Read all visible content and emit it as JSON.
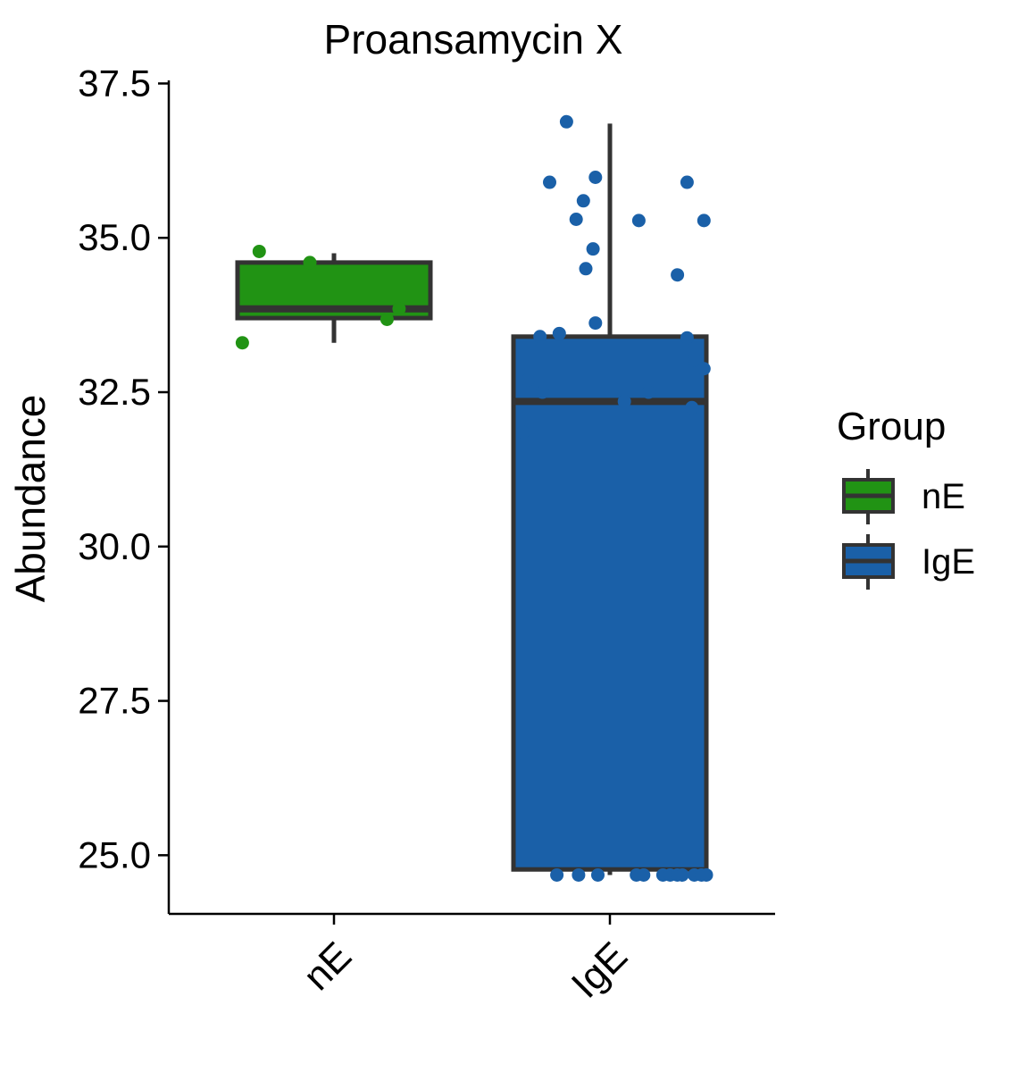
{
  "chart_data": {
    "type": "box",
    "title": "Proansamycin X",
    "xlabel": "",
    "ylabel": "Abundance",
    "categories": [
      "nE",
      "IgE"
    ],
    "ylim": [
      24.05,
      37.55
    ],
    "yticks": [
      25.0,
      27.5,
      30.0,
      32.5,
      35.0,
      37.5
    ],
    "ytick_labels": [
      "25.0",
      "27.5",
      "30.0",
      "32.5",
      "35.0",
      "37.5"
    ],
    "grid": false,
    "legend": {
      "title": "Group",
      "placement": "right",
      "entries": [
        {
          "label": "nE",
          "color": "#219314"
        },
        {
          "label": "IgE",
          "color": "#1a60a8"
        }
      ]
    },
    "series": [
      {
        "category": "nE",
        "color": "#219314",
        "box": {
          "min": 33.3,
          "q1": 33.7,
          "median": 33.85,
          "q3": 34.6,
          "max": 34.75
        },
        "points": [
          {
            "dx": -0.38,
            "y": 33.3
          },
          {
            "dx": -0.31,
            "y": 34.78
          },
          {
            "dx": -0.1,
            "y": 34.6
          },
          {
            "dx": 0.22,
            "y": 33.68
          },
          {
            "dx": 0.27,
            "y": 33.85
          }
        ]
      },
      {
        "category": "IgE",
        "color": "#1a60a8",
        "box": {
          "min": 24.68,
          "q1": 24.77,
          "median": 32.35,
          "q3": 33.4,
          "max": 36.85
        },
        "points": [
          {
            "dx": -0.18,
            "y": 36.88
          },
          {
            "dx": -0.06,
            "y": 35.98
          },
          {
            "dx": -0.25,
            "y": 35.9
          },
          {
            "dx": -0.11,
            "y": 35.6
          },
          {
            "dx": -0.14,
            "y": 35.3
          },
          {
            "dx": -0.07,
            "y": 34.82
          },
          {
            "dx": -0.1,
            "y": 34.5
          },
          {
            "dx": -0.06,
            "y": 33.62
          },
          {
            "dx": -0.21,
            "y": 33.45
          },
          {
            "dx": -0.29,
            "y": 33.4
          },
          {
            "dx": -0.34,
            "y": 32.7
          },
          {
            "dx": -0.28,
            "y": 32.5
          },
          {
            "dx": -0.36,
            "y": 31.85
          },
          {
            "dx": 0.06,
            "y": 32.35
          },
          {
            "dx": 0.16,
            "y": 32.5
          },
          {
            "dx": 0.12,
            "y": 35.28
          },
          {
            "dx": 0.32,
            "y": 35.9
          },
          {
            "dx": 0.39,
            "y": 35.28
          },
          {
            "dx": 0.28,
            "y": 34.4
          },
          {
            "dx": 0.32,
            "y": 33.38
          },
          {
            "dx": 0.35,
            "y": 33.02
          },
          {
            "dx": 0.39,
            "y": 32.88
          },
          {
            "dx": 0.34,
            "y": 32.25
          },
          {
            "dx": -0.22,
            "y": 24.68
          },
          {
            "dx": -0.13,
            "y": 24.68
          },
          {
            "dx": -0.05,
            "y": 24.68
          },
          {
            "dx": 0.11,
            "y": 24.68
          },
          {
            "dx": 0.14,
            "y": 24.68
          },
          {
            "dx": 0.22,
            "y": 24.68
          },
          {
            "dx": 0.25,
            "y": 24.68
          },
          {
            "dx": 0.28,
            "y": 24.68
          },
          {
            "dx": 0.3,
            "y": 24.68
          },
          {
            "dx": 0.35,
            "y": 24.68
          },
          {
            "dx": 0.38,
            "y": 24.68
          },
          {
            "dx": 0.4,
            "y": 24.68
          }
        ]
      }
    ]
  }
}
